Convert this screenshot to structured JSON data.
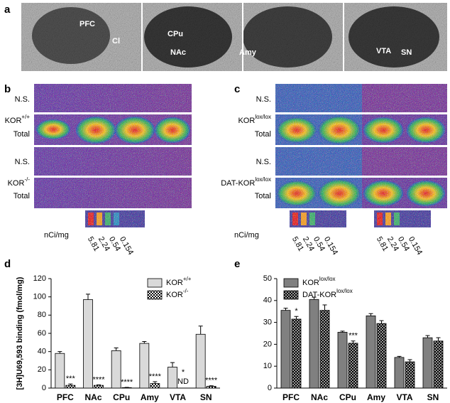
{
  "panels": {
    "a": {
      "label": "a",
      "regions": [
        "PFC",
        "Cl",
        "CPu",
        "NAc",
        "Amy",
        "VTA",
        "SN"
      ]
    },
    "b": {
      "label": "b",
      "rows": [
        {
          "text": "N.S."
        },
        {
          "base": "KOR",
          "sup": "+/+"
        },
        {
          "text": "Total"
        },
        {
          "text": "N.S."
        },
        {
          "base": "KOR",
          "sup": "-/-"
        },
        {
          "text": "Total"
        }
      ],
      "scale_unit": "nCi/mg",
      "scale_values": [
        5.81,
        2.24,
        0.54,
        0.154
      ]
    },
    "c": {
      "label": "c",
      "rows": [
        {
          "text": "N.S."
        },
        {
          "base": "KOR",
          "sup": "lox/lox"
        },
        {
          "text": "Total"
        },
        {
          "text": "N.S."
        },
        {
          "base": "DAT-KOR",
          "sup": "lox/lox"
        },
        {
          "text": "Total"
        }
      ],
      "scale_unit": "nCi/mg",
      "scale_values": [
        5.81,
        2.24,
        0.54,
        0.154
      ]
    },
    "d": {
      "label": "d"
    },
    "e": {
      "label": "e"
    }
  },
  "chart_data": [
    {
      "type": "bar",
      "y_label": "[3H]U69,593 binding (fmol/mg)",
      "categories": [
        "PFC",
        "NAc",
        "CPu",
        "Amy",
        "VTA",
        "SN"
      ],
      "ylim": [
        0,
        120
      ],
      "yticks": [
        0,
        20,
        40,
        60,
        80,
        100,
        120
      ],
      "series": [
        {
          "name": "KOR",
          "name_sup": "+/+",
          "color": "#d9d9d9",
          "values": [
            38,
            97,
            41,
            49,
            23,
            59
          ],
          "errors": [
            2,
            6,
            3,
            2,
            5,
            9
          ]
        },
        {
          "name": "KOR",
          "name_sup": "-/-",
          "color": "#ffffff",
          "pattern": "checker",
          "values": [
            3,
            3,
            0.5,
            5,
            null,
            2
          ],
          "errors": [
            1.5,
            0.5,
            0.3,
            2,
            null,
            0.5
          ],
          "annotations": [
            "***",
            "****",
            "****",
            "****",
            "*",
            "****"
          ],
          "value_labels": [
            null,
            null,
            null,
            null,
            "ND",
            null
          ]
        }
      ]
    },
    {
      "type": "bar",
      "categories": [
        "PFC",
        "NAc",
        "CPu",
        "Amy",
        "VTA",
        "SN"
      ],
      "ylim": [
        0,
        50
      ],
      "yticks": [
        0,
        10,
        20,
        30,
        40,
        50
      ],
      "series": [
        {
          "name": "KOR",
          "name_sup": "lox/lox",
          "color": "#808080",
          "values": [
            35.5,
            40.5,
            25.5,
            33,
            14,
            23
          ],
          "errors": [
            1,
            1,
            0.5,
            1,
            0.5,
            1
          ]
        },
        {
          "name": "DAT-KOR",
          "name_sup": "lox/lox",
          "color": "#999999",
          "pattern": "checker",
          "values": [
            31.5,
            35.5,
            20.5,
            29.5,
            12,
            21.5
          ],
          "errors": [
            1.2,
            2.5,
            1,
            1.3,
            1,
            1.5
          ],
          "annotations": [
            "*",
            null,
            "***",
            null,
            null,
            null
          ]
        }
      ]
    }
  ]
}
